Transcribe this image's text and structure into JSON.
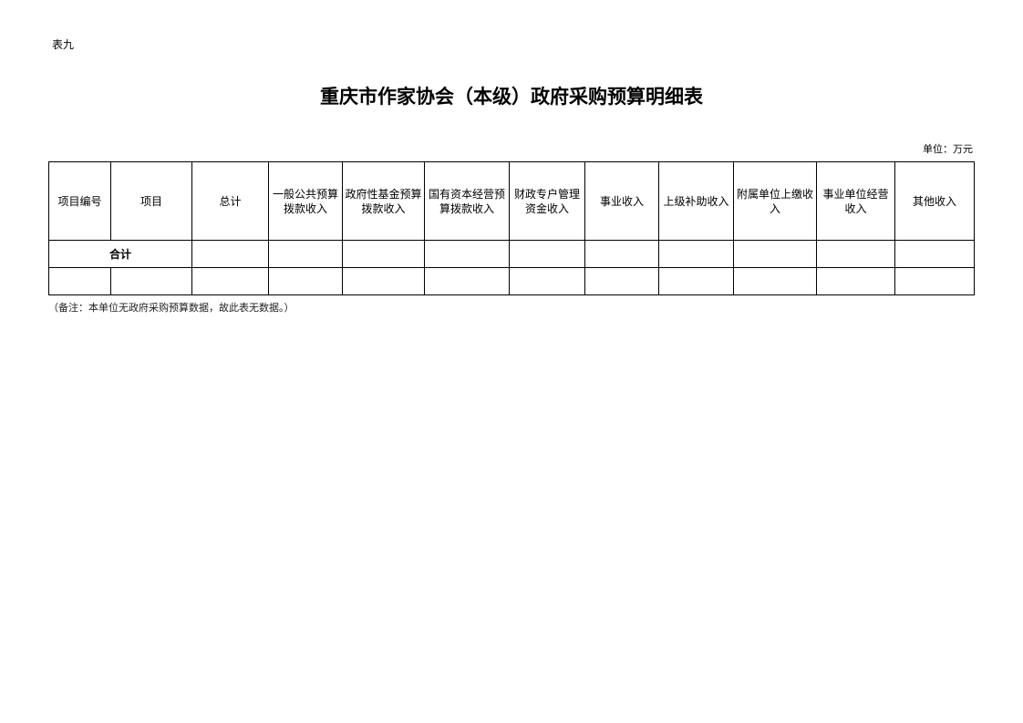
{
  "table_label": "表九",
  "title": "重庆市作家协会（本级）政府采购预算明细表",
  "unit": "单位：万元",
  "table": {
    "headers": [
      "项目编号",
      "项目",
      "总计",
      "一般公共预算拨款收入",
      "政府性基金预算拨款收入",
      "国有资本经营预算拨款收入",
      "财政专户管理资金收入",
      "事业收入",
      "上级补助收入",
      "附属单位上缴收入",
      "事业单位经营收入",
      "其他收入"
    ],
    "total_label": "合计"
  },
  "note": "（备注：本单位无政府采购预算数据，故此表无数据。）"
}
